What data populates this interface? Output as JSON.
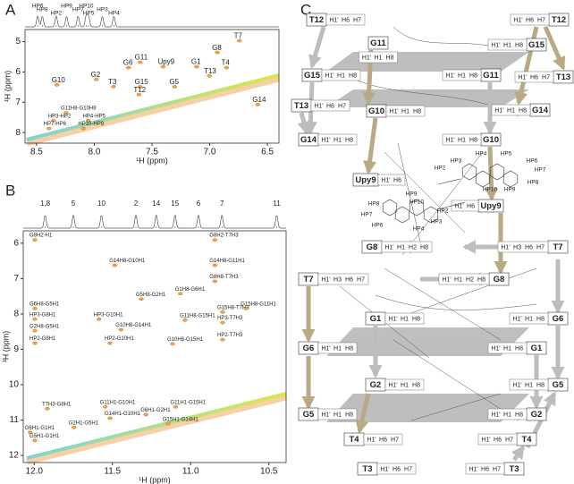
{
  "panel_labels": [
    "A",
    "B",
    "C"
  ],
  "chart_data": [
    {
      "type": "nmr2d",
      "xlabel": "¹H (ppm)",
      "ylabel": "¹H (ppm)",
      "xlim": [
        8.6,
        6.4
      ],
      "ylim": [
        4.6,
        8.35
      ],
      "xticks": [
        8.5,
        {
          "value": 8,
          "label": "8.0"
        },
        7.5,
        {
          "value": 7,
          "label": "7.0"
        },
        6.5
      ],
      "yticks": [
        5,
        6,
        7,
        8
      ],
      "projection_labels": [
        {
          "text": "HP6",
          "x": 8.49
        },
        {
          "text": "HP8",
          "x": 8.45
        },
        {
          "text": "HP2",
          "x": 8.33
        },
        {
          "text": "HP9",
          "x": 8.24
        },
        {
          "text": "HP7",
          "x": 8.14
        },
        {
          "text": "HP5",
          "x": 8.05
        },
        {
          "text": "HP10",
          "x": 8.07
        },
        {
          "text": "HP3",
          "x": 7.93
        },
        {
          "text": "HP4",
          "x": 7.83
        }
      ],
      "annotations": [
        {
          "text": "T7",
          "x": 6.79,
          "y": 4.82
        },
        {
          "text": "G8",
          "x": 6.98,
          "y": 5.21
        },
        {
          "text": "G11",
          "x": 7.65,
          "y": 5.53
        },
        {
          "text": "Upy9",
          "x": 7.45,
          "y": 5.68
        },
        {
          "text": "G6",
          "x": 7.75,
          "y": 5.71
        },
        {
          "text": "G1",
          "x": 7.16,
          "y": 5.68
        },
        {
          "text": "T4",
          "x": 6.9,
          "y": 5.71
        },
        {
          "text": "G2",
          "x": 8.03,
          "y": 6.1
        },
        {
          "text": "G10",
          "x": 8.37,
          "y": 6.28
        },
        {
          "text": "T13",
          "x": 7.05,
          "y": 5.98
        },
        {
          "text": "G15",
          "x": 7.65,
          "y": 6.34
        },
        {
          "text": "G5",
          "x": 7.35,
          "y": 6.34
        },
        {
          "text": "T3",
          "x": 7.88,
          "y": 6.34
        },
        {
          "text": "T12",
          "x": 7.66,
          "y": 6.6
        },
        {
          "text": "G14",
          "x": 6.63,
          "y": 6.93
        },
        {
          "text": "G11H8-G10H8",
          "x": 8.29,
          "y": 7.2
        },
        {
          "text": "HP3-HP2",
          "x": 8.4,
          "y": 7.46
        },
        {
          "text": "HP4-HP5",
          "x": 8.1,
          "y": 7.46
        },
        {
          "text": "HP7-HP6",
          "x": 8.44,
          "y": 7.72
        },
        {
          "text": "HP10-HP9",
          "x": 8.14,
          "y": 7.72
        }
      ]
    },
    {
      "type": "nmr2d",
      "xlabel": "¹H (ppm)",
      "ylabel": "¹H (ppm)",
      "xlim": [
        12.07,
        10.39
      ],
      "ylim": [
        5.65,
        12.2
      ],
      "xticks": [
        {
          "value": 12,
          "label": "12.0"
        },
        11.5,
        {
          "value": 11,
          "label": "11.0"
        },
        10.5
      ],
      "yticks": [
        6,
        7,
        8,
        9,
        10,
        11,
        12
      ],
      "projection_labels": [
        {
          "text": "1,8",
          "x": 11.93
        },
        {
          "text": "5",
          "x": 11.75
        },
        {
          "text": "10",
          "x": 11.57
        },
        {
          "text": "2",
          "x": 11.35
        },
        {
          "text": "14",
          "x": 11.22
        },
        {
          "text": "15",
          "x": 11.1
        },
        {
          "text": "6",
          "x": 10.95
        },
        {
          "text": "7",
          "x": 10.8
        },
        {
          "text": "11",
          "x": 10.45
        }
      ],
      "annotations": [
        {
          "text": "G8H2-H1",
          "x": 12.03,
          "y": 5.78
        },
        {
          "text": "G8H2-T7H3",
          "x": 10.88,
          "y": 5.78
        },
        {
          "text": "G14H8-G10H1",
          "x": 11.52,
          "y": 6.5
        },
        {
          "text": "G14H8-G11H1",
          "x": 10.88,
          "y": 6.5
        },
        {
          "text": "G8H8-T7H3",
          "x": 10.88,
          "y": 6.95
        },
        {
          "text": "G5H8-G2H1",
          "x": 11.35,
          "y": 7.45
        },
        {
          "text": "G1H8-G6H1",
          "x": 11.1,
          "y": 7.3
        },
        {
          "text": "G6H8-G5H1",
          "x": 12.03,
          "y": 7.72
        },
        {
          "text": "HP3-G8H1",
          "x": 12.03,
          "y": 8.02
        },
        {
          "text": "HP3-G10H1",
          "x": 11.62,
          "y": 8.02
        },
        {
          "text": "G11H8-G15H1",
          "x": 11.07,
          "y": 8.05
        },
        {
          "text": "G15H8-T7H3",
          "x": 10.83,
          "y": 7.82
        },
        {
          "text": "G15H8-G11H1",
          "x": 10.68,
          "y": 7.72
        },
        {
          "text": "HP3-T7H3",
          "x": 10.83,
          "y": 8.12
        },
        {
          "text": "G10H8-G14H1",
          "x": 11.48,
          "y": 8.32
        },
        {
          "text": "G2H8-G5H1",
          "x": 12.03,
          "y": 8.35
        },
        {
          "text": "HP2-G8H1",
          "x": 12.03,
          "y": 8.7
        },
        {
          "text": "HP2-G10H1",
          "x": 11.55,
          "y": 8.7
        },
        {
          "text": "G10H8-G15H1",
          "x": 11.15,
          "y": 8.72
        },
        {
          "text": "HP2-T7H3",
          "x": 10.83,
          "y": 8.6
        },
        {
          "text": "T7H3-G8H1",
          "x": 11.95,
          "y": 10.55
        },
        {
          "text": "G11H1-G10H1",
          "x": 11.58,
          "y": 10.5
        },
        {
          "text": "G11H1-G15H1",
          "x": 11.13,
          "y": 10.5
        },
        {
          "text": "G14H1-G10H1",
          "x": 11.55,
          "y": 10.82
        },
        {
          "text": "G6H1-G2H1",
          "x": 11.32,
          "y": 10.72
        },
        {
          "text": "G2H1-G5H1",
          "x": 11.78,
          "y": 11.08
        },
        {
          "text": "G15H1-G14H1",
          "x": 11.18,
          "y": 10.98
        },
        {
          "text": "G6H1-G1H1",
          "x": 12.06,
          "y": 11.22
        },
        {
          "text": "G5H1-G1H1",
          "x": 12.03,
          "y": 11.45
        }
      ]
    }
  ],
  "diagram": {
    "nodes": [
      {
        "label": "T12",
        "atoms": [
          "H1'",
          "H6",
          "H7"
        ]
      },
      {
        "label": "G11",
        "atoms": [
          "H1'",
          "H1",
          "H8"
        ]
      },
      {
        "label": "G15",
        "atoms": [
          "H1'",
          "H1",
          "H8"
        ]
      },
      {
        "label": "T13",
        "atoms": [
          "H1'",
          "H6",
          "H7"
        ]
      },
      {
        "label": "G10",
        "atoms": [
          "H1'",
          "H1",
          "H8"
        ]
      },
      {
        "label": "G14",
        "atoms": [
          "H1'",
          "H1",
          "H8"
        ]
      },
      {
        "label": "Upy9",
        "atoms": [
          "H1'",
          "H6"
        ]
      },
      {
        "label": "G8",
        "atoms": [
          "H1'",
          "H1",
          "H2",
          "H8"
        ]
      },
      {
        "label": "T7",
        "atoms": [
          "H1'",
          "H3",
          "H6",
          "H7"
        ]
      },
      {
        "label": "G1",
        "atoms": [
          "H1'",
          "H1",
          "H8"
        ]
      },
      {
        "label": "G6",
        "atoms": [
          "H1'",
          "H1",
          "H8"
        ]
      },
      {
        "label": "G2",
        "atoms": [
          "H1'",
          "H1",
          "H8"
        ]
      },
      {
        "label": "G5",
        "atoms": [
          "H1'",
          "H1",
          "H8"
        ]
      },
      {
        "label": "T4",
        "atoms": [
          "H1'",
          "H6",
          "H7"
        ]
      },
      {
        "label": "T3",
        "atoms": [
          "H1'",
          "H6",
          "H7"
        ]
      },
      {
        "label": "T12",
        "atoms": [
          "H1'",
          "H6",
          "H7"
        ]
      },
      {
        "label": "G15",
        "atoms": [
          "H1'",
          "H1",
          "H8"
        ]
      },
      {
        "label": "G11",
        "atoms": [
          "H1'",
          "H1",
          "H8"
        ]
      },
      {
        "label": "T13",
        "atoms": [
          "H1'",
          "H6",
          "H7"
        ]
      },
      {
        "label": "G14",
        "atoms": [
          "H1'",
          "H1",
          "H8"
        ]
      },
      {
        "label": "G10",
        "atoms": [
          "H1'",
          "H1",
          "H8"
        ]
      },
      {
        "label": "Upy9",
        "atoms": [
          "H1'",
          "H6"
        ]
      },
      {
        "label": "T7",
        "atoms": [
          "H1'",
          "H3",
          "H6",
          "H7"
        ]
      },
      {
        "label": "G8",
        "atoms": [
          "H1'",
          "H1",
          "H2",
          "H8"
        ]
      },
      {
        "label": "G6",
        "atoms": [
          "H1'",
          "H1",
          "H8"
        ]
      },
      {
        "label": "G1",
        "atoms": [
          "H1'",
          "H1",
          "H8"
        ]
      },
      {
        "label": "G5",
        "atoms": [
          "H1'",
          "H1",
          "H8"
        ]
      },
      {
        "label": "G2",
        "atoms": [
          "H1'",
          "H1",
          "H8"
        ]
      },
      {
        "label": "T4",
        "atoms": [
          "H1'",
          "H6",
          "H7"
        ]
      },
      {
        "label": "T3",
        "atoms": [
          "H1'",
          "H6",
          "H7"
        ]
      }
    ],
    "ligand_labels": [
      "HP2",
      "HP3",
      "HP4",
      "HP5",
      "HP6",
      "HP7",
      "HP8",
      "HP9",
      "HP10",
      "HP9",
      "HP10",
      "HP8",
      "HP7",
      "HP6",
      "HP4",
      "HP3",
      "HP2"
    ]
  }
}
